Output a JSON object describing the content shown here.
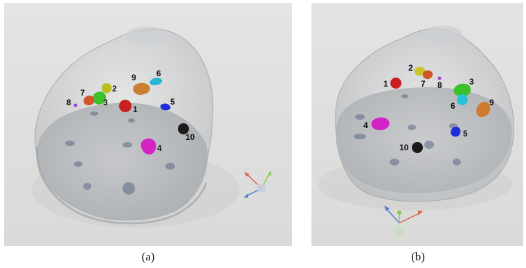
{
  "panels": [
    {
      "caption": "(a)",
      "markers": [
        {
          "label": "1",
          "color": "#c8201e",
          "shape": "sphere"
        },
        {
          "label": "2",
          "color": "#b9bf22",
          "shape": "blob"
        },
        {
          "label": "3",
          "color": "#3cc12c",
          "shape": "blob"
        },
        {
          "label": "4",
          "color": "#d423c4",
          "shape": "blob"
        },
        {
          "label": "5",
          "color": "#1f2fd8",
          "shape": "blob"
        },
        {
          "label": "6",
          "color": "#26b7d6",
          "shape": "blob"
        },
        {
          "label": "7",
          "color": "#d0552b",
          "shape": "blob"
        },
        {
          "label": "8",
          "color": "#9b3fd6",
          "shape": "dot"
        },
        {
          "label": "9",
          "color": "#c98030",
          "shape": "blob"
        },
        {
          "label": "10",
          "color": "#1b1b1b",
          "shape": "sphere"
        }
      ]
    },
    {
      "caption": "(b)",
      "markers": [
        {
          "label": "1",
          "color": "#c8201e",
          "shape": "sphere"
        },
        {
          "label": "2",
          "color": "#c9c52a",
          "shape": "blob"
        },
        {
          "label": "3",
          "color": "#3cc12c",
          "shape": "blob"
        },
        {
          "label": "4",
          "color": "#d423c4",
          "shape": "blob"
        },
        {
          "label": "5",
          "color": "#1f2fd8",
          "shape": "blob"
        },
        {
          "label": "6",
          "color": "#26c3d6",
          "shape": "sphere"
        },
        {
          "label": "7",
          "color": "#d0552b",
          "shape": "blob"
        },
        {
          "label": "8",
          "color": "#9b3fd6",
          "shape": "dot"
        },
        {
          "label": "9",
          "color": "#d07a2c",
          "shape": "blob"
        },
        {
          "label": "10",
          "color": "#1b1b1b",
          "shape": "sphere"
        }
      ]
    }
  ]
}
